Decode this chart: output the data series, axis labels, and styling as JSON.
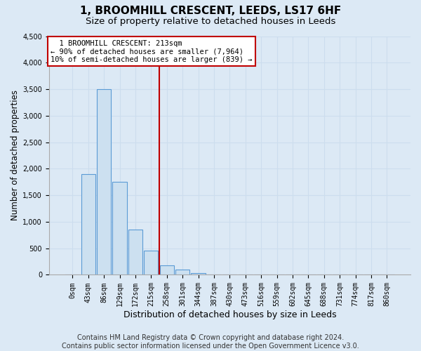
{
  "title": "1, BROOMHILL CRESCENT, LEEDS, LS17 6HF",
  "subtitle": "Size of property relative to detached houses in Leeds",
  "xlabel": "Distribution of detached houses by size in Leeds",
  "ylabel": "Number of detached properties",
  "bar_color": "#cce0f0",
  "bar_edge_color": "#5b9bd5",
  "categories": [
    "0sqm",
    "43sqm",
    "86sqm",
    "129sqm",
    "172sqm",
    "215sqm",
    "258sqm",
    "301sqm",
    "344sqm",
    "387sqm",
    "430sqm",
    "473sqm",
    "516sqm",
    "559sqm",
    "602sqm",
    "645sqm",
    "688sqm",
    "731sqm",
    "774sqm",
    "817sqm",
    "860sqm"
  ],
  "values": [
    0,
    1900,
    3500,
    1750,
    850,
    450,
    175,
    100,
    30,
    5,
    0,
    0,
    0,
    0,
    0,
    0,
    0,
    0,
    0,
    0,
    0
  ],
  "ylim": [
    0,
    4500
  ],
  "yticks": [
    0,
    500,
    1000,
    1500,
    2000,
    2500,
    3000,
    3500,
    4000,
    4500
  ],
  "property_label": "1 BROOMHILL CRESCENT: 213sqm",
  "pct_smaller": "90% of detached houses are smaller (7,964)",
  "pct_larger": "10% of semi-detached houses are larger (839)",
  "vline_x": 5.5,
  "footer": "Contains HM Land Registry data © Crown copyright and database right 2024.\nContains public sector information licensed under the Open Government Licence v3.0.",
  "grid_color": "#ccddee",
  "background_color": "#dce9f5",
  "vline_color": "#c00000",
  "box_edge_color": "#c00000",
  "title_fontsize": 11,
  "subtitle_fontsize": 9.5,
  "tick_fontsize": 7,
  "ylabel_fontsize": 8.5,
  "xlabel_fontsize": 9,
  "annotation_fontsize": 7.5,
  "footer_fontsize": 7
}
